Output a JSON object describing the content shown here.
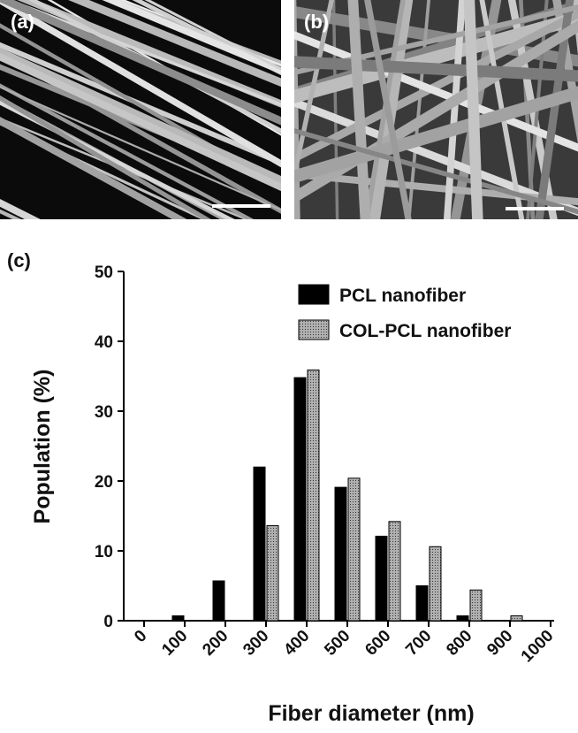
{
  "panels": [
    {
      "label": "(a)"
    },
    {
      "label": "(b)"
    }
  ],
  "chart_data": {
    "type": "bar",
    "panel_label": "(c)",
    "x_label": "Fiber diameter (nm)",
    "y_label": "Population (%)",
    "x": [
      0,
      100,
      200,
      300,
      400,
      500,
      600,
      700,
      800,
      900,
      1000
    ],
    "series": [
      {
        "name": "PCL nanofiber",
        "color": "#000000",
        "values": [
          0,
          0.7,
          5.7,
          22,
          34.8,
          19.1,
          12.1,
          5.0,
          0.7,
          0,
          0
        ]
      },
      {
        "name": "COL-PCL nanofiber",
        "color": "#9a9a9a",
        "values": [
          0,
          0,
          0,
          13.6,
          35.9,
          20.4,
          14.2,
          10.6,
          4.4,
          0.7,
          0
        ]
      }
    ],
    "xlim": [
      -50,
      1050
    ],
    "xticks": [
      0,
      100,
      200,
      300,
      400,
      500,
      600,
      700,
      800,
      900,
      1000
    ],
    "ylim": [
      0,
      50
    ],
    "yticks": [
      0,
      10,
      20,
      30,
      40,
      50
    ],
    "grid": false,
    "legend": "upper right"
  }
}
